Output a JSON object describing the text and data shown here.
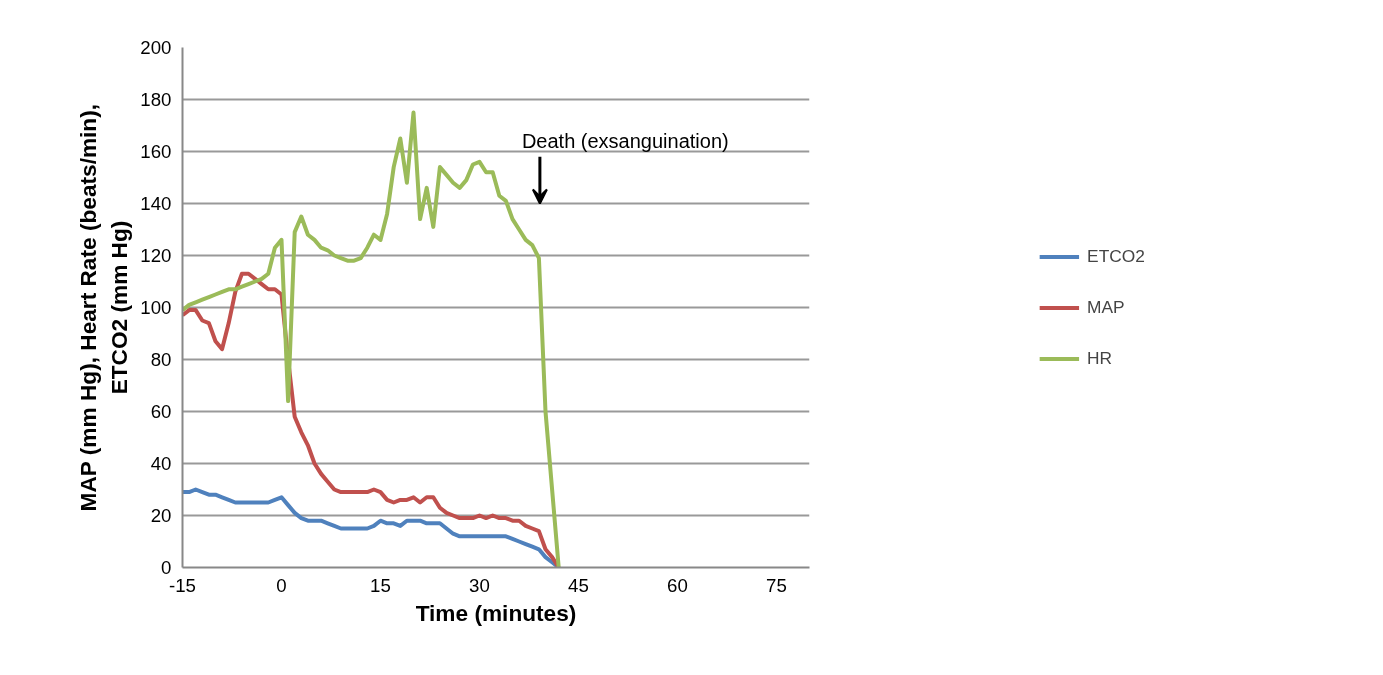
{
  "chart_data": {
    "type": "line",
    "xlabel": "Time (minutes)",
    "ylabel": "MAP (mm Hg), Heart Rate (beats/min), ETCO2 (mm Hg)",
    "x": [
      -15,
      -14,
      -13,
      -12,
      -11,
      -10,
      -9,
      -8,
      -7,
      -6,
      -5,
      -4,
      -3,
      -2,
      -1,
      0,
      1,
      2,
      3,
      4,
      5,
      6,
      7,
      8,
      9,
      10,
      11,
      12,
      13,
      14,
      15,
      16,
      17,
      18,
      19,
      20,
      21,
      22,
      23,
      24,
      25,
      26,
      27,
      28,
      29,
      30,
      31,
      32,
      33,
      34,
      35,
      36,
      37,
      38,
      39,
      40,
      41,
      42
    ],
    "series": [
      {
        "name": "ETCO2",
        "color": "#4f81bd",
        "values": [
          29,
          29,
          30,
          29,
          28,
          28,
          27,
          26,
          25,
          25,
          25,
          25,
          25,
          25,
          26,
          27,
          24,
          21,
          19,
          18,
          18,
          18,
          17,
          16,
          15,
          15,
          15,
          15,
          15,
          16,
          18,
          17,
          17,
          16,
          18,
          18,
          18,
          17,
          17,
          17,
          15,
          13,
          12,
          12,
          12,
          12,
          12,
          12,
          12,
          12,
          11,
          10,
          9,
          8,
          7,
          4,
          2,
          0
        ]
      },
      {
        "name": "MAP",
        "color": "#c0504d",
        "values": [
          97,
          99,
          99,
          95,
          94,
          87,
          84,
          94,
          106,
          113,
          113,
          111,
          109,
          107,
          107,
          105,
          80,
          58,
          52,
          47,
          40,
          36,
          33,
          30,
          29,
          29,
          29,
          29,
          29,
          30,
          29,
          26,
          25,
          26,
          26,
          27,
          25,
          27,
          27,
          23,
          21,
          20,
          19,
          19,
          19,
          20,
          19,
          20,
          19,
          19,
          18,
          18,
          16,
          15,
          14,
          7,
          4,
          0
        ]
      },
      {
        "name": "HR",
        "color": "#9bbb59",
        "values": [
          99,
          101,
          102,
          103,
          104,
          105,
          106,
          107,
          107,
          108,
          109,
          110,
          111,
          113,
          123,
          126,
          64,
          129,
          135,
          128,
          126,
          123,
          122,
          120,
          119,
          118,
          118,
          119,
          123,
          128,
          126,
          136,
          154,
          165,
          148,
          175,
          134,
          146,
          131,
          154,
          151,
          148,
          146,
          149,
          155,
          156,
          152,
          152,
          143,
          141,
          134,
          130,
          126,
          124,
          119,
          60,
          30,
          0
        ]
      }
    ],
    "xlim": [
      -15,
      80
    ],
    "xticks": [
      -15,
      0,
      15,
      30,
      45,
      60,
      75
    ],
    "ylim": [
      0,
      200
    ],
    "yticks": [
      0,
      20,
      40,
      60,
      80,
      100,
      120,
      140,
      160,
      180,
      200
    ],
    "grid": "y",
    "legend": "right",
    "annotations": [
      "Death (exsanguination)"
    ]
  }
}
